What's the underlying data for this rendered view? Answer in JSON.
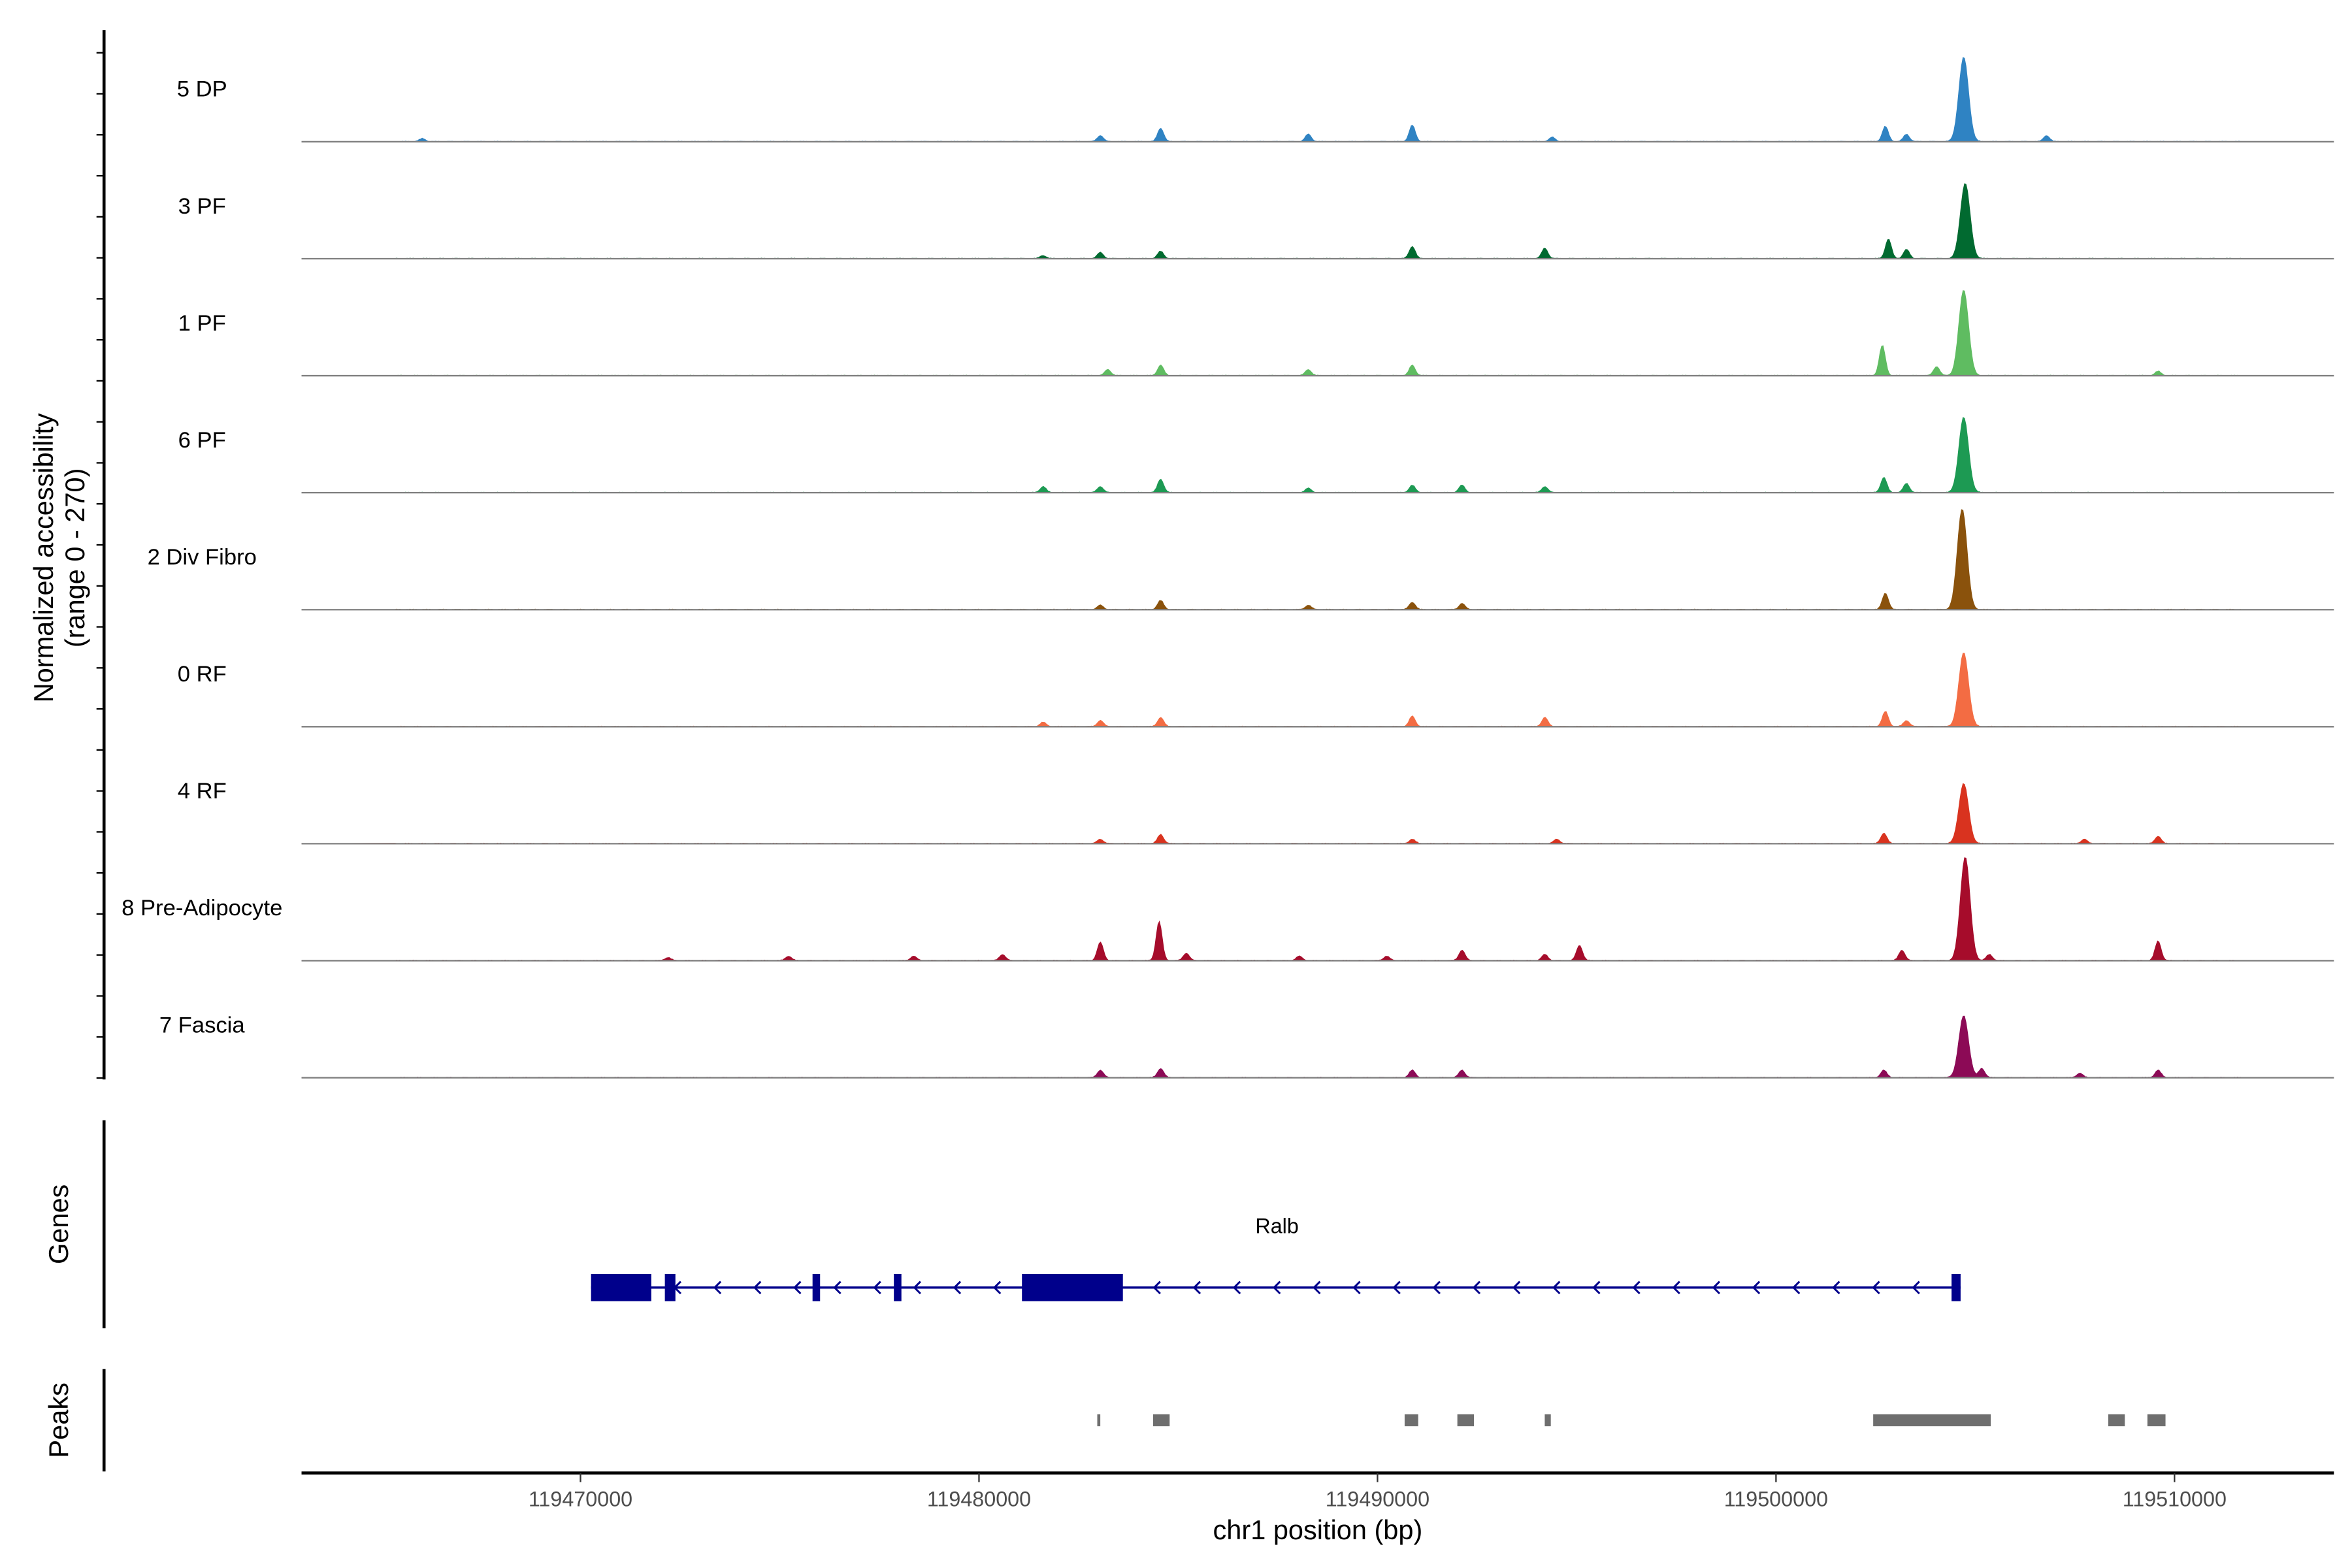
{
  "chart_data": {
    "type": "area",
    "title": "",
    "ylabel_line1": "Normalized accessibility",
    "ylabel_line2": "(range 0 - 270)",
    "ylim": [
      0,
      270
    ],
    "xlabel": "chr1 position (bp)",
    "xlim": [
      119463000,
      119514000
    ],
    "xticks": [
      119470000,
      119480000,
      119490000,
      119500000,
      119510000
    ],
    "xtick_labels": [
      "119470000",
      "119480000",
      "119490000",
      "119500000",
      "119510000"
    ],
    "grid": false,
    "tracks": [
      {
        "name": "5 DP",
        "color": "#2f83c3",
        "peaks": [
          [
            119504710,
            195
          ],
          [
            119502744,
            35
          ],
          [
            119503274,
            17
          ],
          [
            119484558,
            31
          ],
          [
            119490872,
            38
          ],
          [
            119483045,
            14
          ],
          [
            119488263,
            17
          ],
          [
            119506790,
            14
          ],
          [
            119466031,
            7
          ],
          [
            119494388,
            10
          ]
        ]
      },
      {
        "name": "3 PF",
        "color": "#016a30",
        "peaks": [
          [
            119504748,
            174
          ],
          [
            119502820,
            45
          ],
          [
            119503274,
            21
          ],
          [
            119484558,
            17
          ],
          [
            119490872,
            28
          ],
          [
            119494199,
            24
          ],
          [
            119483045,
            14
          ],
          [
            119481609,
            7
          ]
        ]
      },
      {
        "name": "1 PF",
        "color": "#5fbc61",
        "peaks": [
          [
            119504710,
            198
          ],
          [
            119502668,
            70
          ],
          [
            119504030,
            21
          ],
          [
            119484558,
            24
          ],
          [
            119490872,
            24
          ],
          [
            119488263,
            14
          ],
          [
            119483234,
            14
          ],
          [
            119509588,
            10
          ]
        ]
      },
      {
        "name": "6 PF",
        "color": "#1d9a53",
        "peaks": [
          [
            119504710,
            174
          ],
          [
            119502706,
            35
          ],
          [
            119503274,
            21
          ],
          [
            119484558,
            31
          ],
          [
            119490872,
            17
          ],
          [
            119492120,
            17
          ],
          [
            119483045,
            14
          ],
          [
            119488263,
            10
          ],
          [
            119494199,
            14
          ],
          [
            119481609,
            14
          ]
        ]
      },
      {
        "name": "2 Div Fibro",
        "color": "#8a520c",
        "peaks": [
          [
            119504672,
            233
          ],
          [
            119502744,
            38
          ],
          [
            119484558,
            21
          ],
          [
            119490872,
            17
          ],
          [
            119492120,
            14
          ],
          [
            119483045,
            10
          ],
          [
            119488263,
            10
          ]
        ]
      },
      {
        "name": "0 RF",
        "color": "#f36c43",
        "peaks": [
          [
            119504710,
            171
          ],
          [
            119502744,
            35
          ],
          [
            119503274,
            14
          ],
          [
            119484558,
            21
          ],
          [
            119490872,
            24
          ],
          [
            119494199,
            21
          ],
          [
            119483045,
            14
          ],
          [
            119481609,
            10
          ]
        ]
      },
      {
        "name": "4 RF",
        "color": "#d9331f",
        "peaks": [
          [
            119504710,
            139
          ],
          [
            119502706,
            24
          ],
          [
            119507735,
            10
          ],
          [
            119509588,
            17
          ],
          [
            119484558,
            21
          ],
          [
            119483045,
            10
          ],
          [
            119490872,
            10
          ],
          [
            119494500,
            10
          ]
        ]
      },
      {
        "name": "8 Pre-Adipocyte",
        "color": "#a60c2b",
        "peaks": [
          [
            119504748,
            240
          ],
          [
            119509588,
            45
          ],
          [
            119484520,
            90
          ],
          [
            119483045,
            42
          ],
          [
            119495069,
            35
          ],
          [
            119492120,
            24
          ],
          [
            119503160,
            24
          ],
          [
            119505354,
            14
          ],
          [
            119485200,
            17
          ],
          [
            119480588,
            14
          ],
          [
            119478357,
            10
          ],
          [
            119475219,
            10
          ],
          [
            119472194,
            7
          ],
          [
            119488036,
            10
          ],
          [
            119490229,
            10
          ],
          [
            119494199,
            14
          ]
        ]
      },
      {
        "name": "7 Fascia",
        "color": "#8c0a56",
        "peaks": [
          [
            119504710,
            143
          ],
          [
            119502706,
            17
          ],
          [
            119505164,
            21
          ],
          [
            119484558,
            21
          ],
          [
            119483045,
            17
          ],
          [
            119490872,
            17
          ],
          [
            119492120,
            17
          ],
          [
            119507622,
            10
          ],
          [
            119509588,
            17
          ]
        ]
      }
    ],
    "genes_panel_label": "Genes",
    "gene": {
      "name": "Ralb",
      "strand": "-",
      "color": "#00008b",
      "start": 119470265,
      "end": 119504632,
      "exons": [
        [
          119470265,
          119471777,
          "thick"
        ],
        [
          119472117,
          119472382,
          "thick"
        ],
        [
          119475823,
          119476012,
          "thick"
        ],
        [
          119477864,
          119478053,
          "thick"
        ],
        [
          119481078,
          119483611,
          "thick"
        ],
        [
          119504405,
          119504632,
          "thick"
        ]
      ]
    },
    "peaks_panel_label": "Peaks",
    "peak_color": "#6e6e6e",
    "peak_regions": [
      [
        119482968,
        119483044
      ],
      [
        119484368,
        119484784
      ],
      [
        119490681,
        119491021
      ],
      [
        119492004,
        119492420
      ],
      [
        119494197,
        119494349
      ],
      [
        119502439,
        119505388
      ],
      [
        119508337,
        119508753
      ],
      [
        119509320,
        119509774
      ]
    ]
  }
}
